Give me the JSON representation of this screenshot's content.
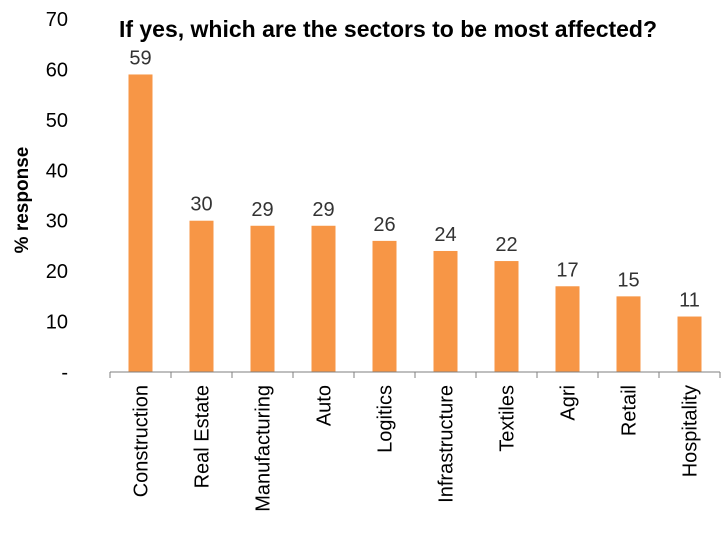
{
  "chart_data": {
    "type": "bar",
    "title": "If yes, which are the sectors to be most affected?",
    "xlabel": "",
    "ylabel": "% response",
    "categories": [
      "Construction",
      "Real Estate",
      "Manufacturing",
      "Auto",
      "Logitics",
      "Infrastructure",
      "Textiles",
      "Agri",
      "Retail",
      "Hospitality"
    ],
    "values": [
      59,
      30,
      29,
      29,
      26,
      24,
      22,
      17,
      15,
      11
    ],
    "data_labels": [
      "59",
      "30",
      "29",
      "29",
      "26",
      "24",
      "22",
      "17",
      "15",
      "11"
    ],
    "ylim": [
      0,
      70
    ],
    "yticks": [
      0,
      10,
      20,
      30,
      40,
      50,
      60,
      70
    ],
    "ytick_labels": [
      "-",
      "10",
      "20",
      "30",
      "40",
      "50",
      "60",
      "70"
    ],
    "grid": false,
    "legend": "none",
    "bar_color": "#F79646"
  }
}
